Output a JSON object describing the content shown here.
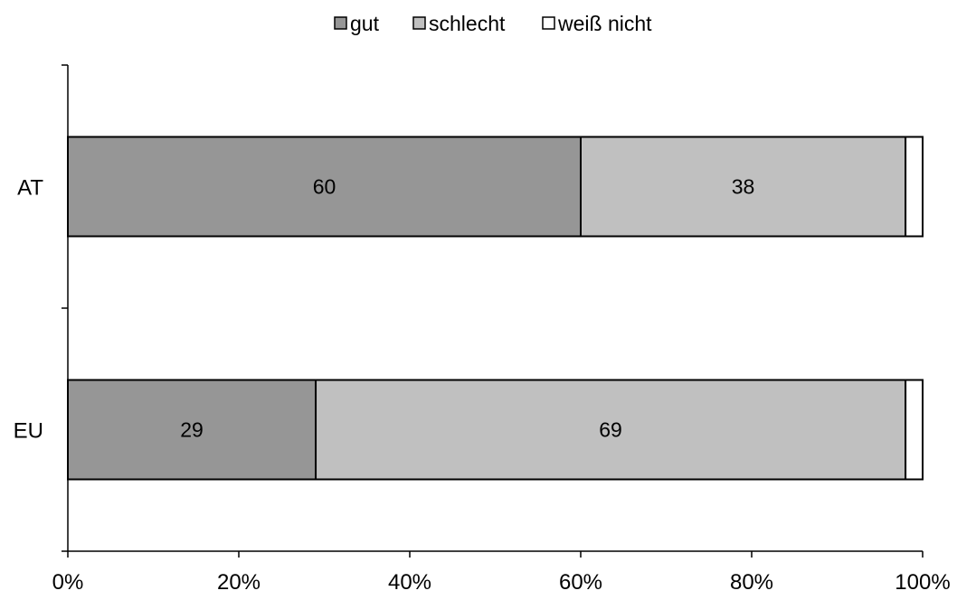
{
  "chart_data": {
    "type": "bar",
    "orientation": "horizontal",
    "stacked": "percent",
    "categories": [
      "AT",
      "EU"
    ],
    "series": [
      {
        "name": "gut",
        "values": [
          60,
          29
        ],
        "color": "#969696",
        "labels": [
          "60",
          "29"
        ]
      },
      {
        "name": "schlecht",
        "values": [
          38,
          69
        ],
        "color": "#c0c0c0",
        "labels": [
          "38",
          "69"
        ]
      },
      {
        "name": "weiß nicht",
        "values": [
          2,
          2
        ],
        "color": "#ffffff",
        "labels": [
          "",
          ""
        ]
      }
    ],
    "xlim": [
      0,
      100
    ],
    "xticks": [
      0,
      20,
      40,
      60,
      80,
      100
    ],
    "xtick_labels": [
      "0%",
      "20%",
      "40%",
      "60%",
      "80%",
      "100%"
    ],
    "legend": {
      "position": "top",
      "entries": [
        "gut",
        "schlecht",
        "weiß nicht"
      ]
    },
    "grid": false,
    "title": "",
    "xlabel": "",
    "ylabel": ""
  }
}
